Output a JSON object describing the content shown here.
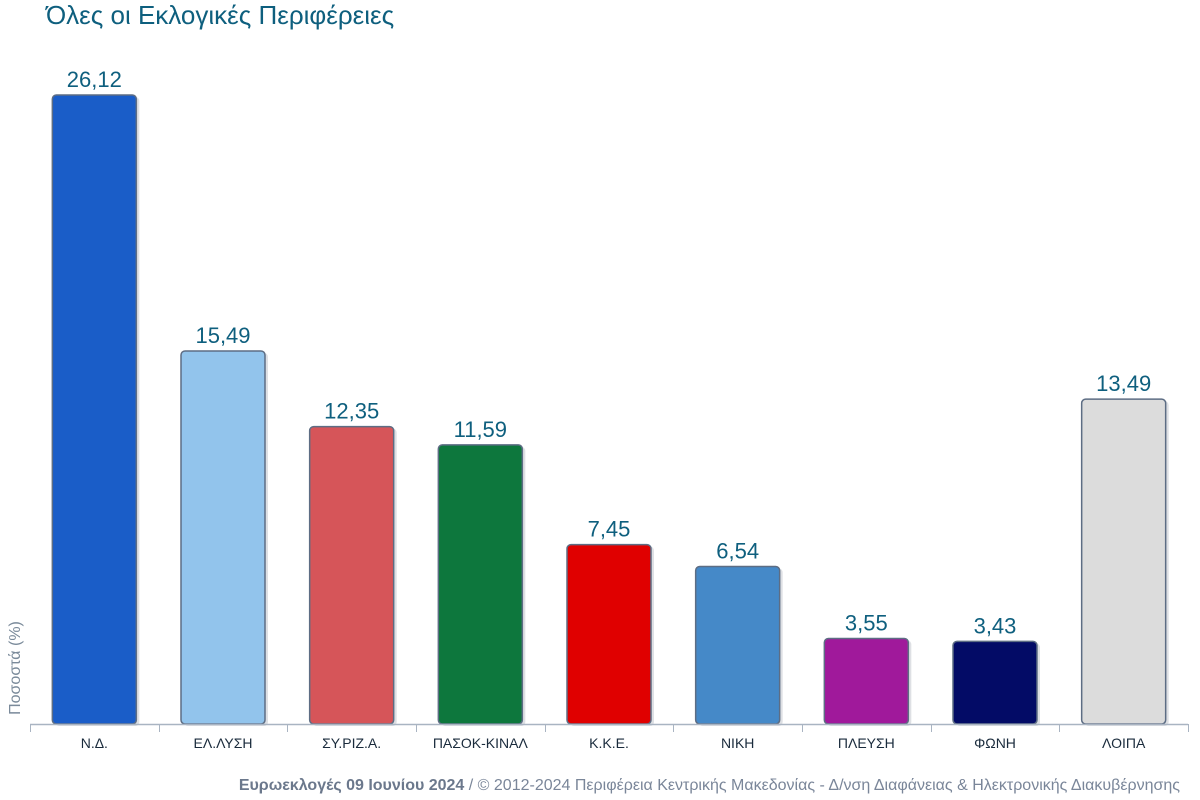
{
  "chart_data": {
    "type": "bar",
    "title": "Όλες οι Εκλογικές Περιφέρειες",
    "ylabel": "Ποσοστά (%)",
    "xlabel": "",
    "categories": [
      "Ν.Δ.",
      "ΕΛ.ΛΥΣΗ",
      "ΣΥ.ΡΙΖ.Α.",
      "ΠΑΣΟΚ-ΚΙΝΑΛ",
      "Κ.Κ.Ε.",
      "ΝΙΚΗ",
      "ΠΛΕΥΣΗ",
      "ΦΩΝΗ",
      "ΛΟΙΠΑ"
    ],
    "values": [
      26.12,
      15.49,
      12.35,
      11.59,
      7.45,
      6.54,
      3.55,
      3.43,
      13.49
    ],
    "labels": [
      "26,12",
      "15,49",
      "12,35",
      "11,59",
      "7,45",
      "6,54",
      "3,55",
      "3,43",
      "13,49"
    ],
    "colors": [
      "#1a5dc8",
      "#92c4ec",
      "#d65559",
      "#0d773d",
      "#e00000",
      "#4589c8",
      "#a0199b",
      "#030b66",
      "#dcdcdc"
    ],
    "ylim": [
      0,
      26.12
    ],
    "grid": false,
    "legend": "none"
  },
  "footer": {
    "bold": "Ευρωεκλογές 09 Ιουνίου 2024",
    "text": " / © 2012-2024 Περιφέρεια Κεντρικής Μακεδονίας - Δ/νση Διαφάνειας & Ηλεκτρονικής Διακυβέρνησης"
  }
}
